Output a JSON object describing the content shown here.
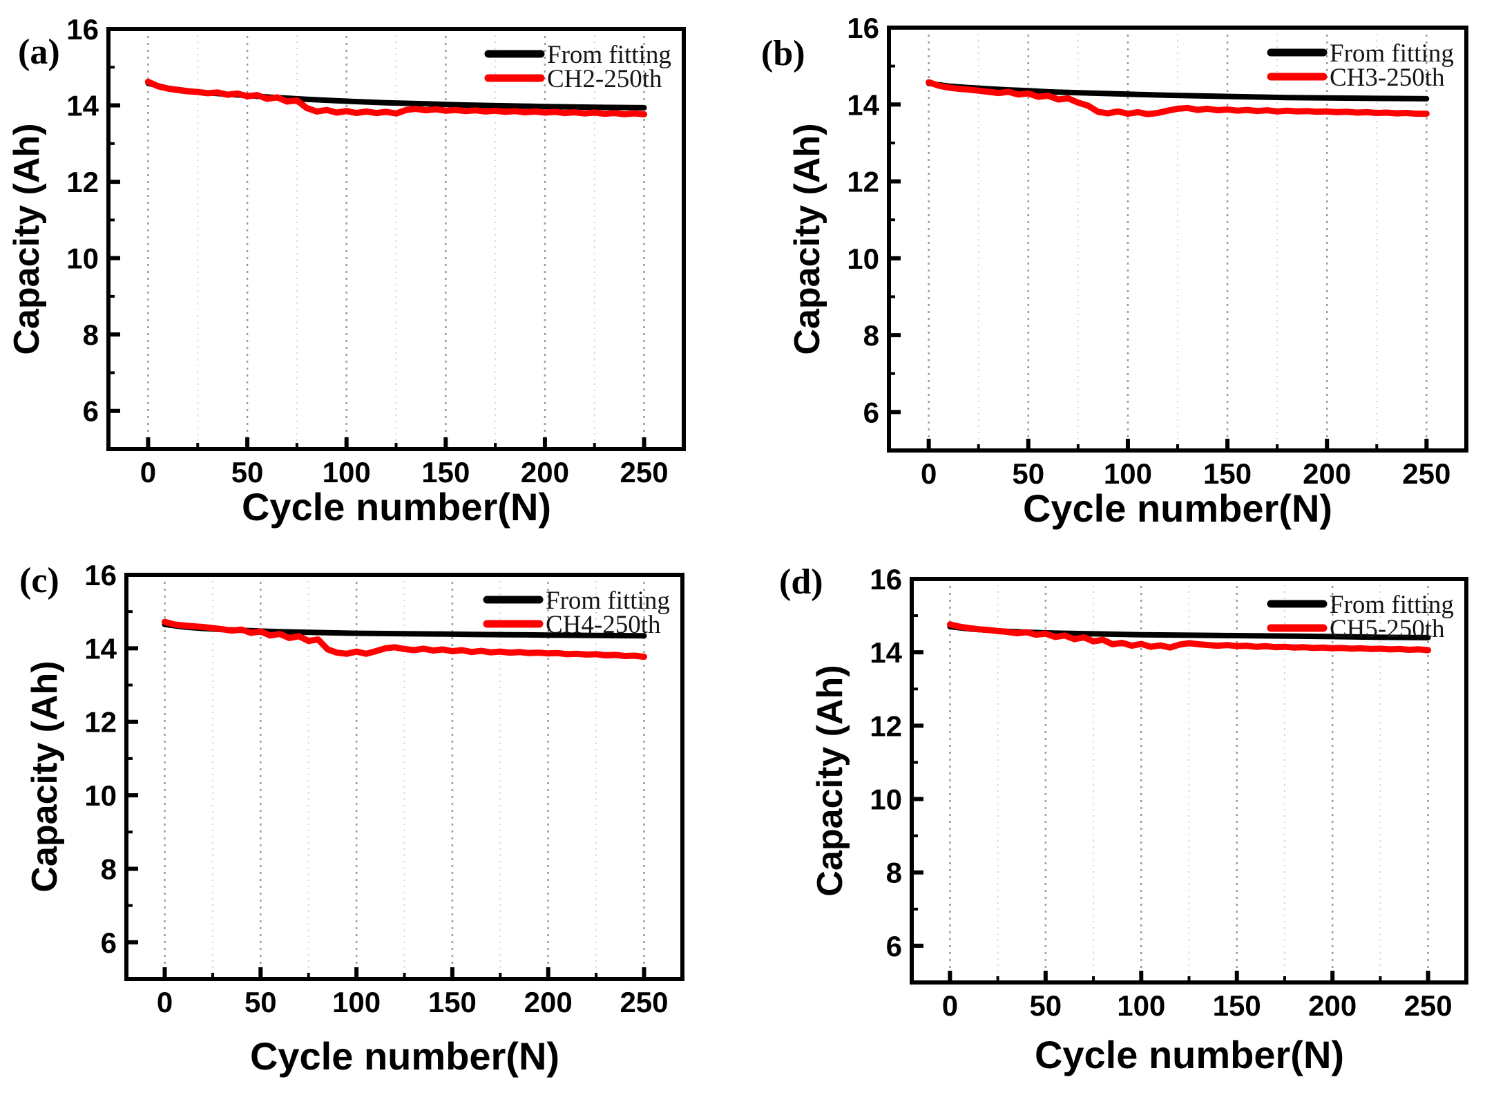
{
  "figure": {
    "background": "#ffffff",
    "colors": {
      "fit_line": "#000000",
      "measured_line": "#ff0000",
      "axis": "#000000",
      "grid_major": "#9a9a9a",
      "grid_minor": "#d6d6d6",
      "legend_text": "#161616"
    }
  },
  "chart_data": [
    {
      "type": "line",
      "panel_label": "(a)",
      "xlabel": "Cycle number(N)",
      "ylabel": "Capacity (Ah)",
      "xlim": [
        -20,
        270
      ],
      "ylim": [
        5,
        16
      ],
      "x_ticks": [
        0,
        50,
        100,
        150,
        200,
        250
      ],
      "x_minor_ticks": [
        25,
        75,
        125,
        175,
        225
      ],
      "y_ticks": [
        6,
        8,
        10,
        12,
        14,
        16
      ],
      "y_minor_ticks": [
        5,
        7,
        9,
        11,
        13,
        15
      ],
      "grid": "vertical-dotted",
      "legend_position": "top-right",
      "series": [
        {
          "name": "From fitting",
          "color": "#000000",
          "x": [
            0,
            10,
            20,
            30,
            40,
            50,
            60,
            80,
            100,
            120,
            140,
            160,
            180,
            200,
            225,
            250
          ],
          "y": [
            14.58,
            14.45,
            14.38,
            14.33,
            14.29,
            14.26,
            14.22,
            14.16,
            14.11,
            14.07,
            14.04,
            14.01,
            13.99,
            13.97,
            13.95,
            13.94
          ]
        },
        {
          "name": "CH2-250th",
          "color": "#ff0000",
          "x": [
            0,
            5,
            10,
            15,
            20,
            25,
            30,
            35,
            40,
            45,
            50,
            55,
            60,
            65,
            70,
            75,
            80,
            85,
            90,
            95,
            100,
            105,
            110,
            115,
            120,
            125,
            130,
            135,
            140,
            145,
            150,
            155,
            160,
            165,
            170,
            175,
            180,
            185,
            190,
            195,
            200,
            205,
            210,
            215,
            220,
            225,
            230,
            235,
            240,
            245,
            250
          ],
          "y": [
            14.62,
            14.5,
            14.44,
            14.4,
            14.37,
            14.35,
            14.32,
            14.34,
            14.28,
            14.31,
            14.24,
            14.27,
            14.17,
            14.21,
            14.1,
            14.13,
            13.93,
            13.84,
            13.88,
            13.81,
            13.85,
            13.8,
            13.84,
            13.8,
            13.83,
            13.79,
            13.88,
            13.91,
            13.87,
            13.9,
            13.86,
            13.88,
            13.85,
            13.87,
            13.84,
            13.86,
            13.83,
            13.85,
            13.82,
            13.84,
            13.81,
            13.83,
            13.8,
            13.82,
            13.79,
            13.81,
            13.78,
            13.8,
            13.77,
            13.79,
            13.77
          ]
        }
      ]
    },
    {
      "type": "line",
      "panel_label": "(b)",
      "xlabel": "Cycle number(N)",
      "ylabel": "Capacity (Ah)",
      "xlim": [
        -20,
        270
      ],
      "ylim": [
        5,
        16
      ],
      "x_ticks": [
        0,
        50,
        100,
        150,
        200,
        250
      ],
      "x_minor_ticks": [
        25,
        75,
        125,
        175,
        225
      ],
      "y_ticks": [
        6,
        8,
        10,
        12,
        14,
        16
      ],
      "y_minor_ticks": [
        5,
        7,
        9,
        11,
        13,
        15
      ],
      "grid": "vertical-dotted",
      "legend_position": "top-right",
      "series": [
        {
          "name": "From fitting",
          "color": "#000000",
          "x": [
            0,
            10,
            20,
            30,
            40,
            50,
            60,
            80,
            100,
            120,
            140,
            160,
            180,
            200,
            225,
            250
          ],
          "y": [
            14.55,
            14.48,
            14.44,
            14.41,
            14.38,
            14.36,
            14.33,
            14.3,
            14.27,
            14.24,
            14.22,
            14.2,
            14.18,
            14.17,
            14.16,
            14.15
          ]
        },
        {
          "name": "CH3-250th",
          "color": "#ff0000",
          "x": [
            0,
            5,
            10,
            15,
            20,
            25,
            30,
            35,
            40,
            45,
            50,
            55,
            60,
            65,
            70,
            75,
            80,
            85,
            90,
            95,
            100,
            105,
            110,
            115,
            120,
            125,
            130,
            135,
            140,
            145,
            150,
            155,
            160,
            165,
            170,
            175,
            180,
            185,
            190,
            195,
            200,
            205,
            210,
            215,
            220,
            225,
            230,
            235,
            240,
            245,
            250
          ],
          "y": [
            14.58,
            14.49,
            14.44,
            14.41,
            14.39,
            14.36,
            14.33,
            14.3,
            14.33,
            14.26,
            14.29,
            14.2,
            14.23,
            14.13,
            14.16,
            14.05,
            13.97,
            13.81,
            13.77,
            13.82,
            13.76,
            13.8,
            13.75,
            13.78,
            13.84,
            13.89,
            13.91,
            13.86,
            13.89,
            13.85,
            13.87,
            13.84,
            13.86,
            13.83,
            13.85,
            13.82,
            13.84,
            13.82,
            13.83,
            13.81,
            13.82,
            13.8,
            13.81,
            13.79,
            13.8,
            13.78,
            13.79,
            13.77,
            13.78,
            13.76,
            13.76
          ]
        }
      ]
    },
    {
      "type": "line",
      "panel_label": "(c)",
      "xlabel": "Cycle number(N)",
      "ylabel": "Capacity (Ah)",
      "xlim": [
        -20,
        270
      ],
      "ylim": [
        5,
        16
      ],
      "x_ticks": [
        0,
        50,
        100,
        150,
        200,
        250
      ],
      "x_minor_ticks": [
        25,
        75,
        125,
        175,
        225
      ],
      "y_ticks": [
        6,
        8,
        10,
        12,
        14,
        16
      ],
      "y_minor_ticks": [
        5,
        7,
        9,
        11,
        13,
        15
      ],
      "grid": "vertical-dotted",
      "legend_position": "top-right",
      "series": [
        {
          "name": "From fitting",
          "color": "#000000",
          "x": [
            0,
            10,
            20,
            30,
            40,
            50,
            60,
            80,
            100,
            120,
            140,
            160,
            180,
            200,
            225,
            250
          ],
          "y": [
            14.65,
            14.58,
            14.54,
            14.51,
            14.49,
            14.47,
            14.45,
            14.43,
            14.41,
            14.4,
            14.39,
            14.38,
            14.37,
            14.36,
            14.35,
            14.34
          ]
        },
        {
          "name": "CH4-250th",
          "color": "#ff0000",
          "x": [
            0,
            5,
            10,
            15,
            20,
            25,
            30,
            35,
            40,
            45,
            50,
            55,
            60,
            65,
            70,
            75,
            80,
            85,
            90,
            95,
            100,
            105,
            110,
            115,
            120,
            125,
            130,
            135,
            140,
            145,
            150,
            155,
            160,
            165,
            170,
            175,
            180,
            185,
            190,
            195,
            200,
            205,
            210,
            215,
            220,
            225,
            230,
            235,
            240,
            245,
            250
          ],
          "y": [
            14.72,
            14.65,
            14.62,
            14.6,
            14.58,
            14.55,
            14.52,
            14.48,
            14.51,
            14.42,
            14.46,
            14.35,
            14.39,
            14.28,
            14.33,
            14.2,
            14.24,
            13.97,
            13.88,
            13.85,
            13.91,
            13.85,
            13.92,
            14.0,
            14.03,
            13.98,
            13.95,
            13.99,
            13.94,
            13.97,
            13.92,
            13.95,
            13.9,
            13.93,
            13.89,
            13.91,
            13.88,
            13.9,
            13.87,
            13.88,
            13.86,
            13.87,
            13.84,
            13.85,
            13.83,
            13.84,
            13.81,
            13.82,
            13.79,
            13.8,
            13.77
          ]
        }
      ]
    },
    {
      "type": "line",
      "panel_label": "(d)",
      "xlabel": "Cycle number(N)",
      "ylabel": "Capacity (Ah)",
      "xlim": [
        -20,
        270
      ],
      "ylim": [
        5,
        16
      ],
      "x_ticks": [
        0,
        50,
        100,
        150,
        200,
        250
      ],
      "x_minor_ticks": [
        25,
        75,
        125,
        175,
        225
      ],
      "y_ticks": [
        6,
        8,
        10,
        12,
        14,
        16
      ],
      "y_minor_ticks": [
        5,
        7,
        9,
        11,
        13,
        15
      ],
      "grid": "vertical-dotted",
      "legend_position": "top-right",
      "series": [
        {
          "name": "From fitting",
          "color": "#000000",
          "x": [
            0,
            10,
            20,
            30,
            40,
            50,
            60,
            80,
            100,
            120,
            140,
            160,
            180,
            200,
            225,
            250
          ],
          "y": [
            14.7,
            14.64,
            14.6,
            14.57,
            14.55,
            14.53,
            14.52,
            14.5,
            14.48,
            14.47,
            14.46,
            14.45,
            14.44,
            14.43,
            14.41,
            14.4
          ]
        },
        {
          "name": "CH5-250th",
          "color": "#ff0000",
          "x": [
            0,
            5,
            10,
            15,
            20,
            25,
            30,
            35,
            40,
            45,
            50,
            55,
            60,
            65,
            70,
            75,
            80,
            85,
            90,
            95,
            100,
            105,
            110,
            115,
            120,
            125,
            130,
            135,
            140,
            145,
            150,
            155,
            160,
            165,
            170,
            175,
            180,
            185,
            190,
            195,
            200,
            205,
            210,
            215,
            220,
            225,
            230,
            235,
            240,
            245,
            250
          ],
          "y": [
            14.76,
            14.7,
            14.66,
            14.63,
            14.61,
            14.58,
            14.56,
            14.52,
            14.55,
            14.48,
            14.51,
            14.42,
            14.46,
            14.36,
            14.41,
            14.3,
            14.34,
            14.22,
            14.26,
            14.18,
            14.23,
            14.15,
            14.19,
            14.13,
            14.21,
            14.25,
            14.22,
            14.2,
            14.18,
            14.2,
            14.17,
            14.18,
            14.15,
            14.17,
            14.14,
            14.15,
            14.13,
            14.14,
            14.12,
            14.13,
            14.11,
            14.12,
            14.1,
            14.11,
            14.09,
            14.1,
            14.08,
            14.09,
            14.07,
            14.08,
            14.06
          ]
        }
      ]
    }
  ]
}
